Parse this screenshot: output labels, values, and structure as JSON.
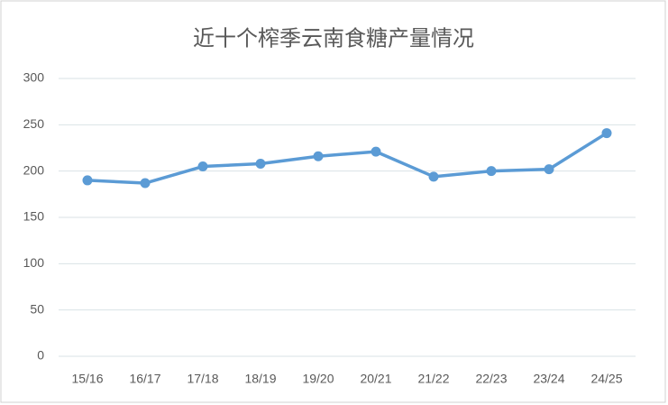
{
  "chart_data": {
    "type": "line",
    "title": "近十个榨季云南食糖产量情况",
    "categories": [
      "15/16",
      "16/17",
      "17/18",
      "18/19",
      "19/20",
      "20/21",
      "21/22",
      "22/23",
      "23/24",
      "24/25"
    ],
    "series": [
      {
        "color": "#5b9bd5",
        "values": [
          190,
          187,
          205,
          208,
          216,
          221,
          194,
          200,
          202,
          241
        ]
      }
    ],
    "ylim": [
      0,
      300
    ],
    "yticks": [
      0,
      50,
      100,
      150,
      200,
      250,
      300
    ],
    "grid": true
  }
}
